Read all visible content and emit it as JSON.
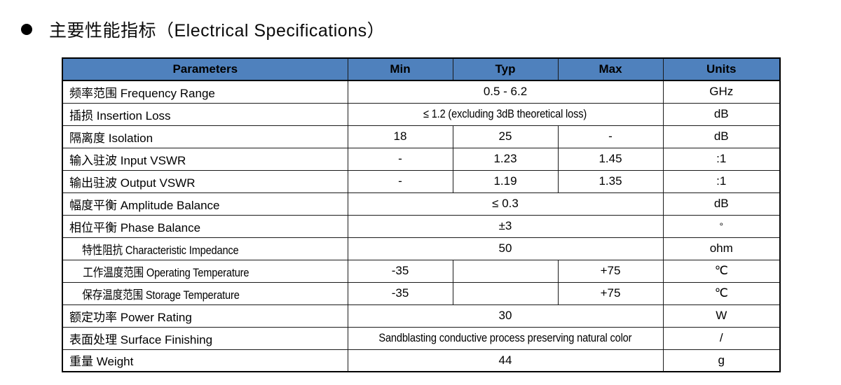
{
  "title": {
    "bullet_icon": "circle-bullet",
    "text": "主要性能指标（Electrical Specifications）"
  },
  "table": {
    "header_bg": "#4f81bd",
    "header": {
      "parameters": "Parameters",
      "min": "Min",
      "typ": "Typ",
      "max": "Max",
      "units": "Units"
    },
    "rows": [
      {
        "param": "频率范围  Frequency Range",
        "type": "span",
        "value": "0.5 - 6.2",
        "units": "GHz"
      },
      {
        "param": "插损  Insertion Loss",
        "type": "span",
        "value": "≤ 1.2 (excluding 3dB theoretical loss)",
        "units": "dB"
      },
      {
        "param": "隔离度  Isolation",
        "type": "cells",
        "min": "18",
        "typ": "25",
        "max": "-",
        "units": "dB"
      },
      {
        "param": "输入驻波  Input VSWR",
        "type": "cells",
        "min": "-",
        "typ": "1.23",
        "max": "1.45",
        "units": ":1"
      },
      {
        "param": "输出驻波  Output VSWR",
        "type": "cells",
        "min": "-",
        "typ": "1.19",
        "max": "1.35",
        "units": ":1"
      },
      {
        "param": "幅度平衡  Amplitude Balance",
        "type": "span",
        "value": "≤ 0.3",
        "units": "dB"
      },
      {
        "param": "相位平衡  Phase Balance",
        "type": "span",
        "value": "±3",
        "units": "°"
      },
      {
        "param": "特性阻抗  Characteristic Impedance",
        "type": "span",
        "value": "50",
        "units": "ohm"
      },
      {
        "param": "工作温度范围  Operating Temperature",
        "type": "cells",
        "min": "-35",
        "typ": "",
        "max": "+75",
        "units": "℃"
      },
      {
        "param": "保存温度范围  Storage Temperature",
        "type": "cells",
        "min": "-35",
        "typ": "",
        "max": "+75",
        "units": "℃"
      },
      {
        "param": "额定功率  Power Rating",
        "type": "span",
        "value": "30",
        "units": "W"
      },
      {
        "param": "表面处理  Surface Finishing",
        "type": "span",
        "value": "Sandblasting conductive process preserving natural color",
        "units": "/"
      },
      {
        "param": "重量  Weight",
        "type": "span",
        "value": "44",
        "units": "g"
      }
    ]
  }
}
